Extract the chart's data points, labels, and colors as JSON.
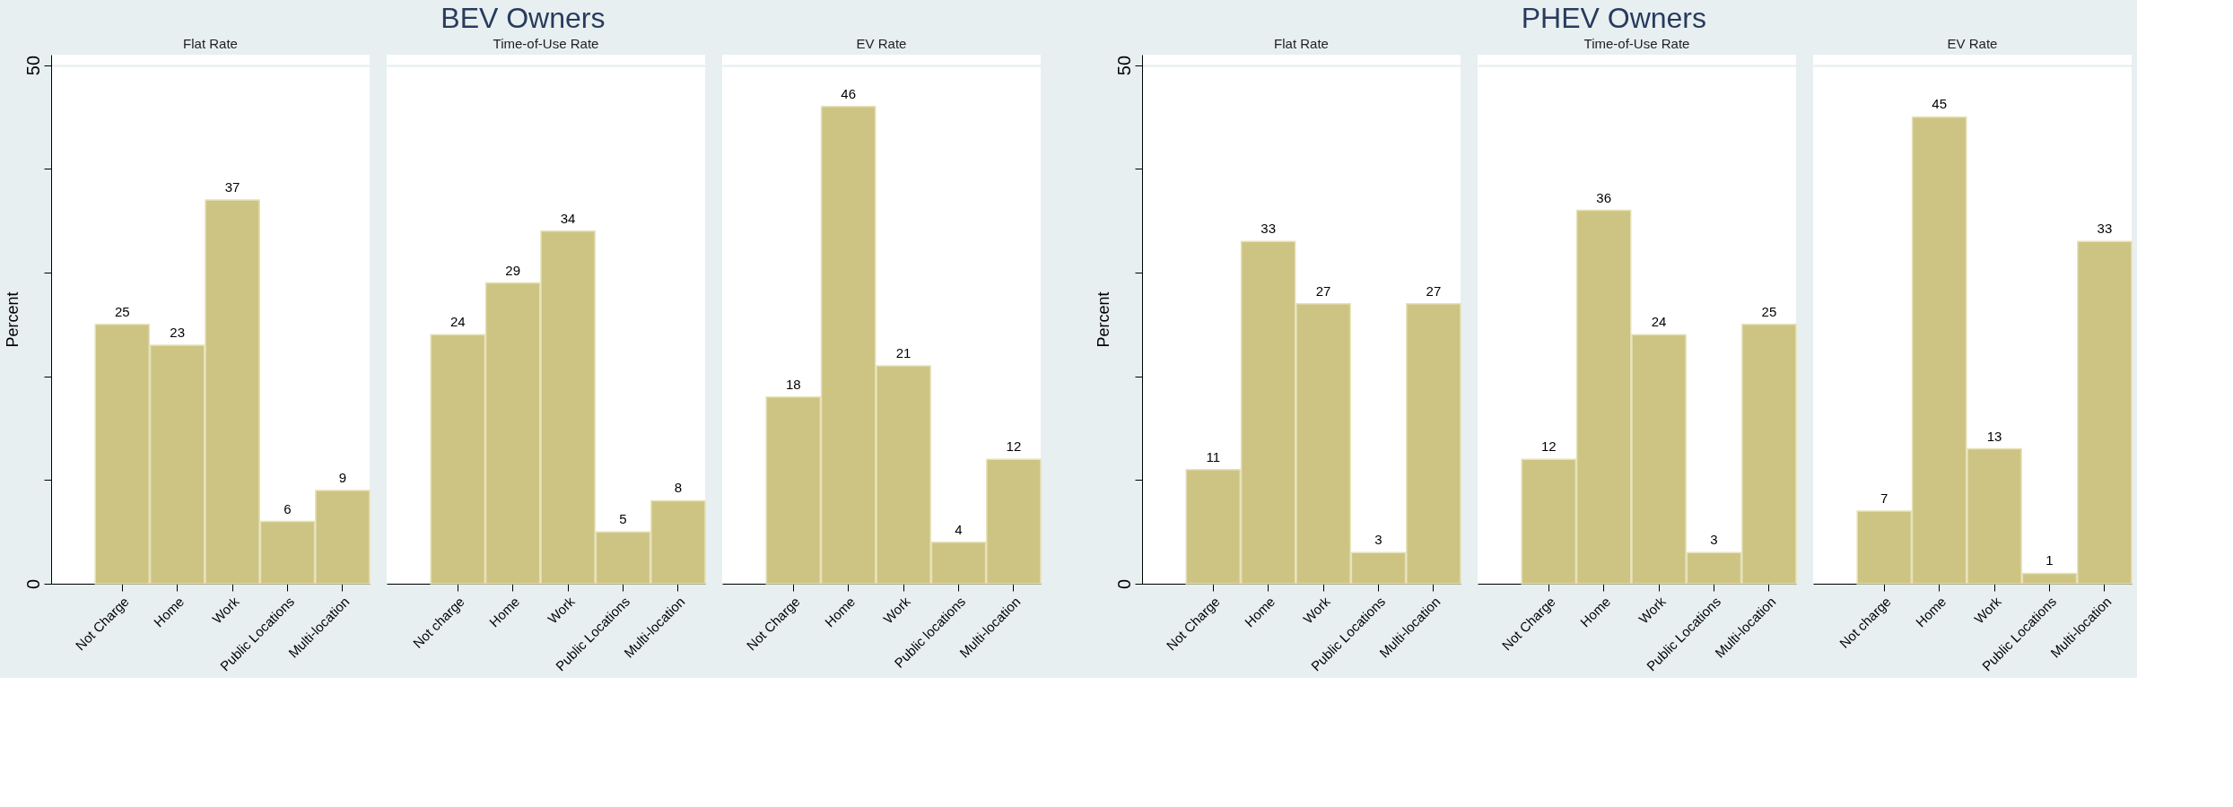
{
  "chart_data": [
    {
      "type": "bar",
      "title": "Flat Rate",
      "annotations": [
        "BEV Owners"
      ],
      "ylabel": "Percent",
      "categories": [
        "Not Charge",
        "Home",
        "Work",
        "Public Locations",
        "Multi-location"
      ],
      "values": [
        25,
        23,
        37,
        6,
        9
      ],
      "color": "#cdc484",
      "ylim": [
        0,
        51
      ],
      "yticks": [
        0,
        {
          "value": 10,
          "label": null
        },
        {
          "value": 20,
          "label": null
        },
        {
          "value": 30,
          "label": null
        },
        {
          "value": 40,
          "label": null
        },
        50
      ],
      "grid": "y",
      "data_labels": true
    },
    {
      "type": "bar",
      "title": "Time-of-Use Rate",
      "categories": [
        "Not charge",
        "Home",
        "Work",
        "Public Locations",
        "Multi-location"
      ],
      "values": [
        24,
        29,
        34,
        5,
        8
      ],
      "color": "#cdc484",
      "ylim": [
        0,
        51
      ],
      "yticks": [
        0,
        50
      ],
      "grid": "y",
      "data_labels": true,
      "tick_labels": "x"
    },
    {
      "type": "bar",
      "title": "EV Rate",
      "categories": [
        "Not Charge",
        "Home",
        "Work",
        "Public locations",
        "Multi-location"
      ],
      "values": [
        18,
        46,
        21,
        4,
        12
      ],
      "color": "#cdc484",
      "ylim": [
        0,
        51
      ],
      "yticks": [
        0,
        50
      ],
      "grid": "y",
      "data_labels": true,
      "tick_labels": "x"
    },
    {
      "type": "bar",
      "title": "Flat Rate",
      "annotations": [
        "PHEV Owners"
      ],
      "ylabel": "Percent",
      "categories": [
        "Not Charge",
        "Home",
        "Work",
        "Public Locations",
        "Multi-location"
      ],
      "values": [
        11,
        33,
        27,
        3,
        27
      ],
      "color": "#cdc484",
      "ylim": [
        0,
        51
      ],
      "yticks": [
        0,
        {
          "value": 10,
          "label": null
        },
        {
          "value": 20,
          "label": null
        },
        {
          "value": 30,
          "label": null
        },
        {
          "value": 40,
          "label": null
        },
        50
      ],
      "grid": "y",
      "data_labels": true
    },
    {
      "type": "bar",
      "title": "Time-of-Use Rate",
      "categories": [
        "Not Charge",
        "Home",
        "Work",
        "Public Locations",
        "Multi-location"
      ],
      "values": [
        12,
        36,
        24,
        3,
        25
      ],
      "color": "#cdc484",
      "ylim": [
        0,
        51
      ],
      "yticks": [
        0,
        50
      ],
      "grid": "y",
      "data_labels": true,
      "tick_labels": "x"
    },
    {
      "type": "bar",
      "title": "EV Rate",
      "categories": [
        "Not charge",
        "Home",
        "Work",
        "Public Locations",
        "Multi-location"
      ],
      "values": [
        7,
        45,
        13,
        1,
        33
      ],
      "color": "#cdc484",
      "ylim": [
        0,
        51
      ],
      "yticks": [
        0,
        50
      ],
      "grid": "y",
      "data_labels": true,
      "tick_labels": "x"
    }
  ]
}
